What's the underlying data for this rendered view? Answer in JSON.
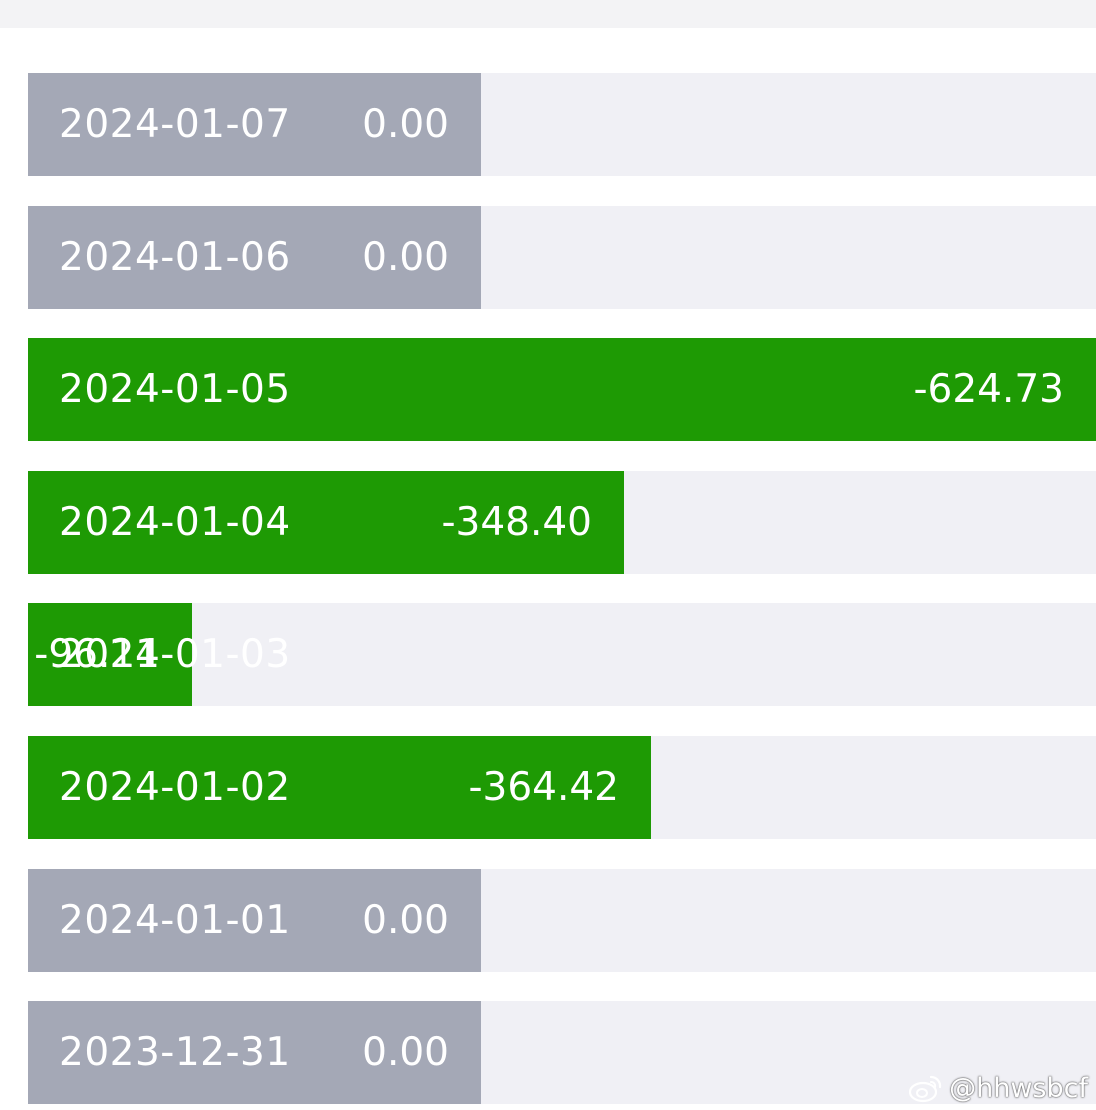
{
  "colors": {
    "zero_bar": "#a4a8b6",
    "negative_bar": "#1e9a04",
    "track": "#f0f0f5",
    "label_text": "#ffffff"
  },
  "chart_data": {
    "type": "bar",
    "orientation": "horizontal",
    "categories": [
      "2024-01-07",
      "2024-01-06",
      "2024-01-05",
      "2024-01-04",
      "2024-01-03",
      "2024-01-02",
      "2024-01-01",
      "2023-12-31"
    ],
    "values": [
      0.0,
      0.0,
      -624.73,
      -348.4,
      -96.11,
      -364.42,
      0.0,
      0.0
    ],
    "value_labels": [
      "0.00",
      "0.00",
      "-624.73",
      "-348.40",
      "-96.11",
      "-364.42",
      "0.00",
      "0.00"
    ],
    "title": "",
    "xlabel": "",
    "ylabel": ""
  },
  "watermark": {
    "icon": "weibo-icon",
    "text": "@hhwsbcf"
  }
}
